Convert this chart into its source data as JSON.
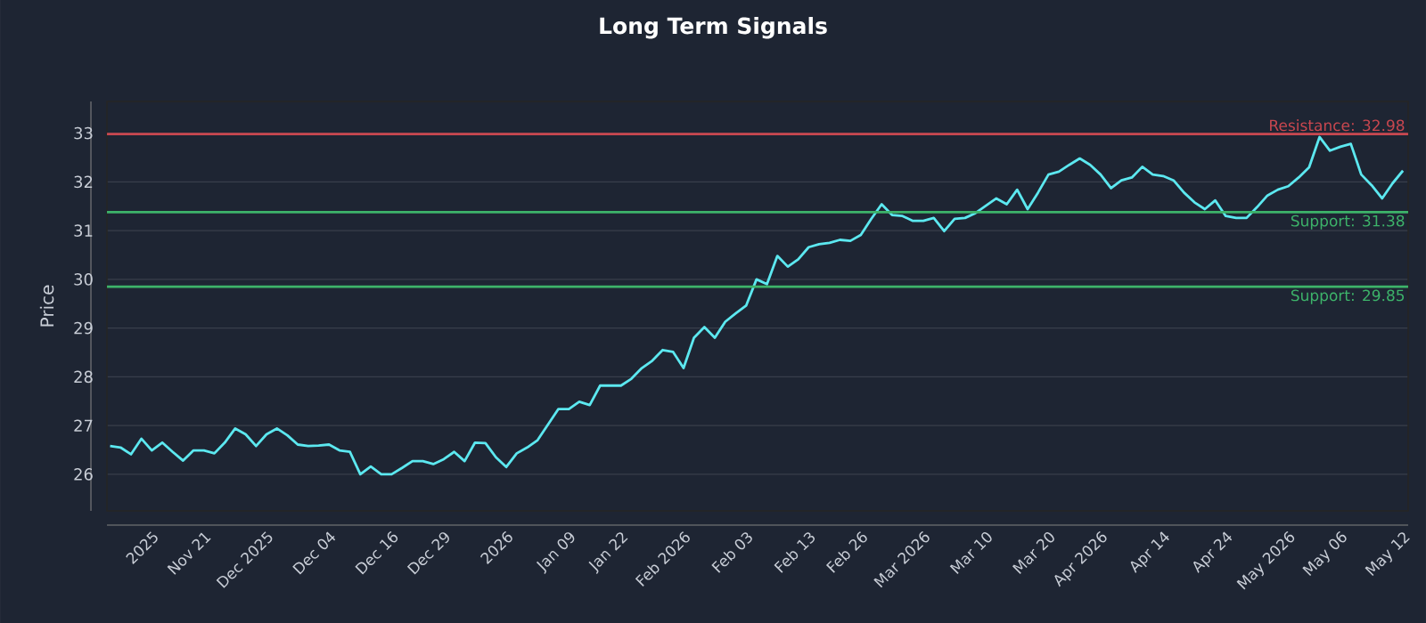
{
  "chart_data": {
    "type": "line",
    "title": "Long Term Signals",
    "ylabel": "Price",
    "categories": [
      null,
      null,
      null,
      null,
      "2025",
      null,
      null,
      null,
      null,
      "Nov 21",
      null,
      null,
      null,
      null,
      null,
      "Dec 2025",
      null,
      null,
      null,
      null,
      null,
      "Dec 04",
      null,
      null,
      null,
      null,
      null,
      "Dec 16",
      null,
      null,
      null,
      null,
      "Dec 29",
      null,
      null,
      null,
      null,
      null,
      "2026",
      null,
      null,
      null,
      null,
      null,
      "Jan 09",
      null,
      null,
      null,
      null,
      "Jan 22",
      null,
      null,
      null,
      null,
      null,
      "Feb 2026",
      null,
      null,
      null,
      null,
      null,
      "Feb 03",
      null,
      null,
      null,
      null,
      null,
      "Feb 13",
      null,
      null,
      null,
      null,
      "Feb 26",
      null,
      null,
      null,
      null,
      null,
      "Mar 2026",
      null,
      null,
      null,
      null,
      null,
      "Mar 10",
      null,
      null,
      null,
      null,
      null,
      "Mar 20",
      null,
      null,
      null,
      null,
      "Apr 2026",
      null,
      null,
      null,
      null,
      null,
      "Apr 14",
      null,
      null,
      null,
      null,
      null,
      "Apr 24",
      null,
      null,
      null,
      null,
      null,
      "May 2026",
      null,
      null,
      null,
      null,
      "May 06",
      null,
      null,
      null,
      null,
      null,
      "May 12"
    ],
    "series": [
      {
        "color": "#5ce8f0",
        "values": [
          26.58,
          26.55,
          26.41,
          26.73,
          26.49,
          26.65,
          26.46,
          26.28,
          26.49,
          26.49,
          26.43,
          26.65,
          26.94,
          26.82,
          26.58,
          26.82,
          26.94,
          26.8,
          26.61,
          26.58,
          26.59,
          26.61,
          26.49,
          26.46,
          26.0,
          26.16,
          26.0,
          26.0,
          26.13,
          26.27,
          26.27,
          26.21,
          26.31,
          26.46,
          26.27,
          26.65,
          26.64,
          26.35,
          26.15,
          26.43,
          26.55,
          26.7,
          27.02,
          27.34,
          27.34,
          27.49,
          27.42,
          27.82,
          27.82,
          27.82,
          27.96,
          28.18,
          28.33,
          28.55,
          28.51,
          28.18,
          28.8,
          29.02,
          28.8,
          29.13,
          29.3,
          29.46,
          30.0,
          29.9,
          30.48,
          30.26,
          30.41,
          30.66,
          30.72,
          30.75,
          30.81,
          30.79,
          30.91,
          31.24,
          31.54,
          31.32,
          31.3,
          31.2,
          31.2,
          31.26,
          30.99,
          31.24,
          31.26,
          31.36,
          31.51,
          31.66,
          31.54,
          31.84,
          31.44,
          31.78,
          32.15,
          32.21,
          32.35,
          32.48,
          32.35,
          32.15,
          31.87,
          32.03,
          32.09,
          32.31,
          32.15,
          32.12,
          32.03,
          31.78,
          31.58,
          31.44,
          31.62,
          31.3,
          31.26,
          31.26,
          31.48,
          31.72,
          31.84,
          31.91,
          32.09,
          32.3,
          32.92,
          32.64,
          32.72,
          32.78,
          32.15,
          31.93,
          31.66,
          31.97,
          32.23
        ]
      }
    ],
    "ylim": [
      25.25,
      33.65
    ],
    "yticks": [
      26,
      27,
      28,
      29,
      30,
      31,
      32,
      33
    ],
    "grid": "y",
    "line_style": "solid",
    "marker": "none",
    "ref_lines": [
      {
        "axis": "y",
        "value": 32.98,
        "label": "Resistance: 32.98",
        "color": "#c8474f"
      },
      {
        "axis": "y",
        "value": 31.38,
        "label": "Support: 31.38",
        "color": "#3db36a"
      },
      {
        "axis": "y",
        "value": 29.85,
        "label": "Support: 29.85",
        "color": "#3db36a"
      }
    ]
  }
}
